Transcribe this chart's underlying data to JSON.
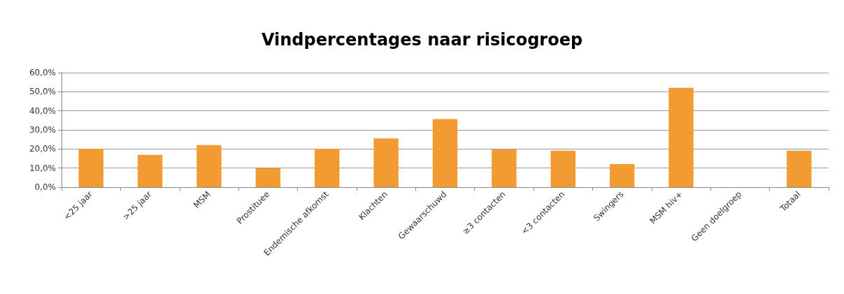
{
  "chart_data": {
    "type": "bar",
    "title": "Vindpercentages naar risicogroep",
    "categories": [
      "<25 jaar",
      ">25 jaar",
      "MSM",
      "Prostituee",
      "Endemische afkomst",
      "Klachten",
      "Gewaarschuwd",
      "≥3 contacten",
      "<3 contacten",
      "Swingers",
      "MSM hiv+",
      "Geen doelgroep",
      "Totaal"
    ],
    "values": [
      20.1,
      16.9,
      22.0,
      10.0,
      20.1,
      25.5,
      35.7,
      19.8,
      19.1,
      12.1,
      52.0,
      0,
      19.1
    ],
    "color": "#f29b30",
    "ylim": [
      0,
      60
    ],
    "yticks": [
      {
        "value": 0,
        "label": "0,0%"
      },
      {
        "value": 10,
        "label": "10,0%"
      },
      {
        "value": 20,
        "label": "20,0%"
      },
      {
        "value": 30,
        "label": "30,0%"
      },
      {
        "value": 40,
        "label": "40,0%"
      },
      {
        "value": 50,
        "label": "50,0%"
      },
      {
        "value": 60,
        "label": "60,0%"
      }
    ],
    "grid": true
  }
}
